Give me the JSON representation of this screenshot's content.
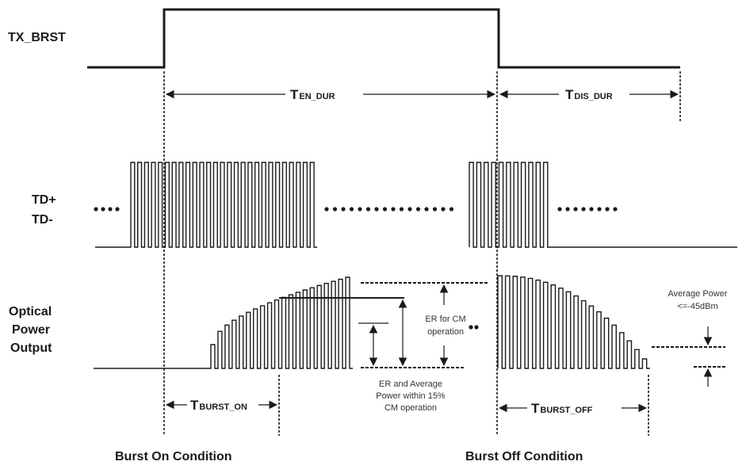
{
  "signals": {
    "tx_brst": "TX_BRST",
    "td_plus": "TD+",
    "td_minus": "TD-",
    "optical_line1": "Optical",
    "optical_line2": "Power",
    "optical_line3": "Output"
  },
  "timings": {
    "en_dur": {
      "t": "T",
      "sub": "EN_DUR"
    },
    "dis_dur": {
      "t": "T",
      "sub": "DIS_DUR"
    },
    "burst_on": {
      "t": "T",
      "sub": "BURST_ON"
    },
    "burst_off": {
      "t": "T",
      "sub": "BURST_OFF"
    }
  },
  "annotations": {
    "er_cm_line1": "ER for CM",
    "er_cm_line2": "operation",
    "er_avg_line1": "ER and Average",
    "er_avg_line2": "Power within 15%",
    "er_avg_line3": "CM operation",
    "avg_power_line1": "Average Power",
    "avg_power_line2": "<=-45dBm"
  },
  "conditions": {
    "burst_on": "Burst On Condition",
    "burst_off": "Burst Off Condition"
  },
  "colors": {
    "stroke": "#1a1a1a",
    "background": "#ffffff"
  }
}
